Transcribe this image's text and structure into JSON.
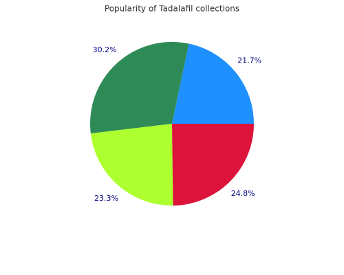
{
  "chart_data": {
    "type": "pie",
    "title": "Popularity of Tadalafil collections",
    "values": [
      21.7,
      30.2,
      23.3,
      24.8
    ],
    "value_labels": [
      "21.7%",
      "30.2%",
      "23.3%",
      "24.8%"
    ],
    "colors": [
      "#1e90ff",
      "#2e8b57",
      "#adff2f",
      "#dc143c"
    ],
    "start_angle": 0,
    "direction": "counterclockwise"
  }
}
